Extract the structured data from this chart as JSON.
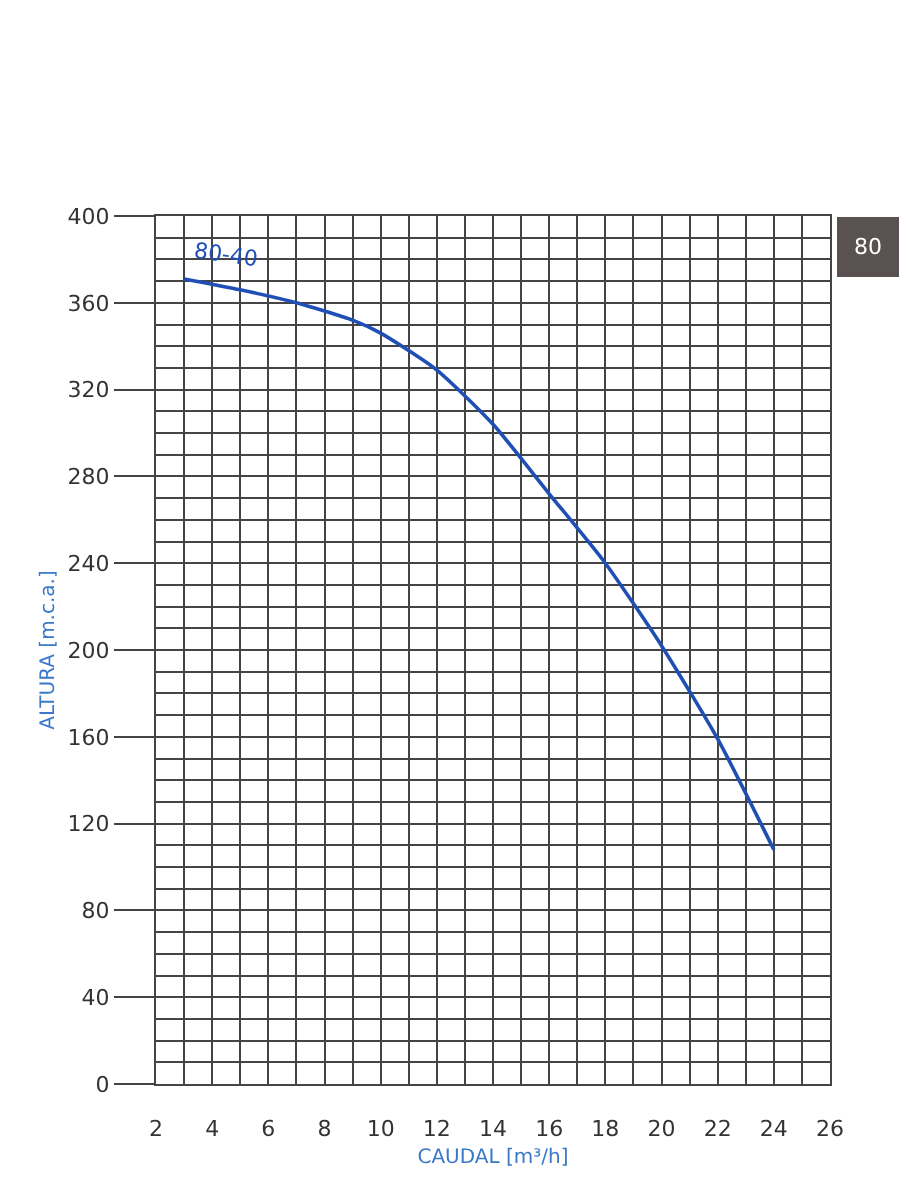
{
  "chart_data": {
    "type": "line",
    "xlabel": "CAUDAL [m³/h]",
    "ylabel": "ALTURA [m.c.a.]",
    "annotations": [
      "80"
    ],
    "x": [
      3,
      5,
      7,
      9,
      10,
      12,
      14,
      16,
      18,
      20,
      22,
      24
    ],
    "series": [
      {
        "name": "80-40",
        "color": "#1f4fb5",
        "values": [
          371,
          366,
          360,
          352,
          346,
          329,
          304,
          272,
          240,
          202,
          159,
          108
        ]
      }
    ],
    "xlim": [
      2,
      26
    ],
    "xticks": [
      2,
      4,
      6,
      8,
      10,
      12,
      14,
      16,
      18,
      20,
      22,
      24,
      26
    ],
    "ylim": [
      0,
      400
    ],
    "yticks": [
      0,
      40,
      80,
      120,
      160,
      200,
      240,
      280,
      320,
      360,
      400
    ],
    "grid": true,
    "legend": false,
    "marker": "none",
    "line_style": "solid"
  }
}
